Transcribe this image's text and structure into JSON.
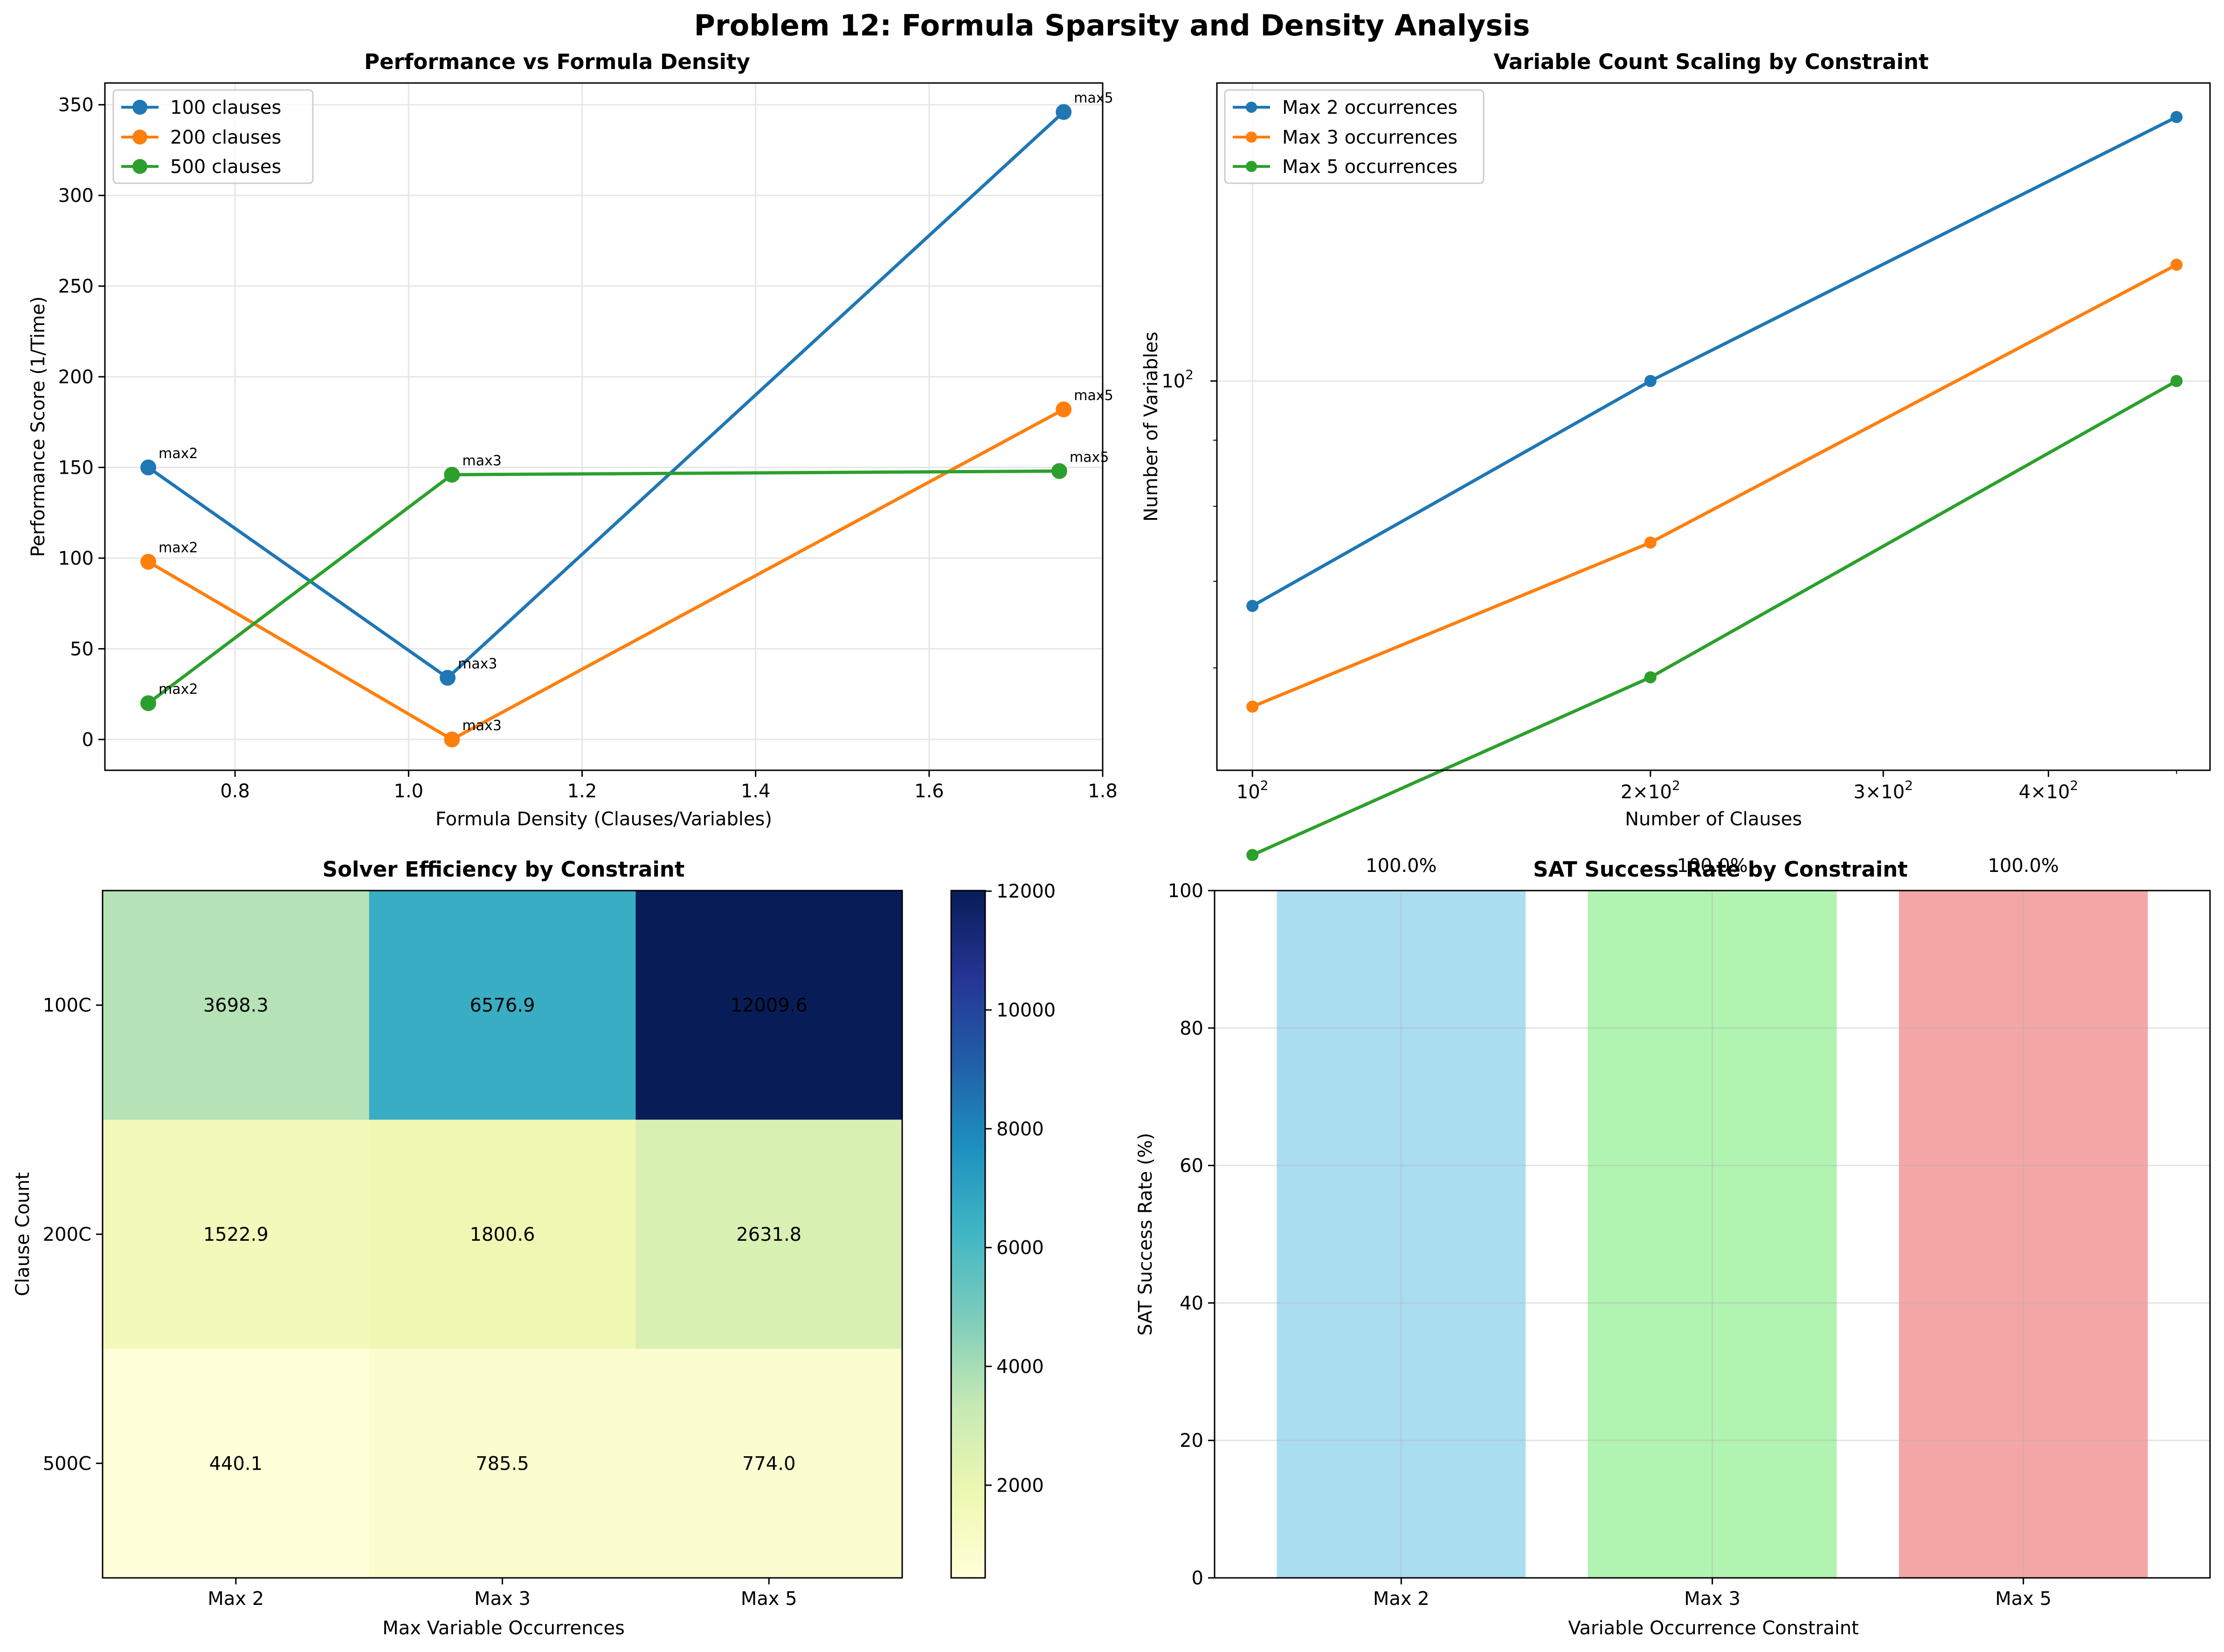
{
  "figure": {
    "title": "Problem 12: Formula Sparsity and Density Analysis"
  },
  "colors": {
    "blue": "#1f77b4",
    "orange": "#ff7f0e",
    "green": "#2ca02c",
    "grid": "#e6e6e6",
    "bar_blue": "#87ceeb",
    "bar_green": "#90ee90",
    "bar_red": "#f08080"
  },
  "chart_data": [
    {
      "type": "line",
      "title": "Performance vs Formula Density",
      "xlabel": "Formula Density (Clauses/Variables)",
      "ylabel": "Performance Score (1/Time)",
      "xlim": [
        0.65,
        1.8
      ],
      "ylim": [
        -17,
        362
      ],
      "xticks": [
        0.8,
        1.0,
        1.2,
        1.4,
        1.6,
        1.8
      ],
      "yticks": [
        0,
        50,
        100,
        150,
        200,
        250,
        300,
        350
      ],
      "xtick_labels": [
        "0.8",
        "1.0",
        "1.2",
        "1.4",
        "1.6",
        "1.8"
      ],
      "ytick_labels": [
        "0",
        "50",
        "100",
        "150",
        "200",
        "250",
        "300",
        "350"
      ],
      "grid": true,
      "legend": "top-left",
      "series": [
        {
          "name": "100 clauses",
          "color": "#1f77b4",
          "x": [
            0.7,
            1.045,
            1.755
          ],
          "y": [
            150,
            34,
            346
          ],
          "labels": [
            "max2",
            "max3",
            "max5"
          ]
        },
        {
          "name": "200 clauses",
          "color": "#ff7f0e",
          "x": [
            0.7,
            1.05,
            1.755
          ],
          "y": [
            98,
            0,
            182
          ],
          "labels": [
            "max2",
            "max3",
            "max5"
          ]
        },
        {
          "name": "500 clauses",
          "color": "#2ca02c",
          "x": [
            0.7,
            1.05,
            1.75
          ],
          "y": [
            20,
            146,
            148
          ],
          "labels": [
            "max2",
            "max3",
            "max5"
          ]
        }
      ]
    },
    {
      "type": "line",
      "title": "Variable Count Scaling by Constraint",
      "xlabel": "Number of Clauses",
      "ylabel": "Number of Variables",
      "xscale": "log",
      "yscale": "log",
      "xlim": [
        94,
        530
      ],
      "ylim": [
        50,
        170
      ],
      "xticks": [
        100,
        200,
        300,
        400
      ],
      "yticks": [
        100
      ],
      "grid": true,
      "legend": "top-left",
      "series": [
        {
          "name": "Max 2 occurrences",
          "color": "#1f77b4",
          "x": [
            100,
            200,
            500
          ],
          "y": [
            67,
            100,
            160
          ]
        },
        {
          "name": "Max 3 occurrences",
          "color": "#ff7f0e",
          "x": [
            100,
            200,
            500
          ],
          "y": [
            56,
            75,
            123
          ]
        },
        {
          "name": "Max 5 occurrences",
          "color": "#2ca02c",
          "x": [
            100,
            200,
            500
          ],
          "y": [
            43,
            59,
            100
          ]
        }
      ]
    },
    {
      "type": "heatmap",
      "title": "Solver Efficiency by Constraint",
      "xlabel": "Max Variable Occurrences",
      "ylabel": "Clause Count",
      "columns": [
        "Max 2",
        "Max 3",
        "Max 5"
      ],
      "rows": [
        "100C",
        "200C",
        "500C"
      ],
      "values": [
        [
          3698.3,
          6576.9,
          12009.6
        ],
        [
          1522.9,
          1800.6,
          2631.8
        ],
        [
          440.1,
          785.5,
          774.0
        ]
      ],
      "value_labels": [
        [
          "3698.3",
          "6576.9",
          "12009.6"
        ],
        [
          "1522.9",
          "1800.6",
          "2631.8"
        ],
        [
          "440.1",
          "785.5",
          "774.0"
        ]
      ],
      "colormap": "YlGnBu",
      "color_range": [
        440.1,
        12009.6
      ],
      "colorbar_ticks": [
        2000,
        4000,
        6000,
        8000,
        10000,
        12000
      ],
      "colorbar_labels": [
        "2000",
        "4000",
        "6000",
        "8000",
        "10000",
        "12000"
      ]
    },
    {
      "type": "bar",
      "title": "SAT Success Rate by Constraint",
      "xlabel": "Variable Occurrence Constraint",
      "ylabel": "SAT Success Rate (%)",
      "categories": [
        "Max 2",
        "Max 3",
        "Max 5"
      ],
      "values": [
        100,
        100,
        100
      ],
      "value_labels": [
        "100.0%",
        "100.0%",
        "100.0%"
      ],
      "colors": [
        "#87ceeb",
        "#90ee90",
        "#f08080"
      ],
      "ylim": [
        0,
        100
      ],
      "yticks": [
        0,
        20,
        40,
        60,
        80,
        100
      ],
      "ytick_labels": [
        "0",
        "20",
        "40",
        "60",
        "80",
        "100"
      ],
      "grid": true
    }
  ]
}
